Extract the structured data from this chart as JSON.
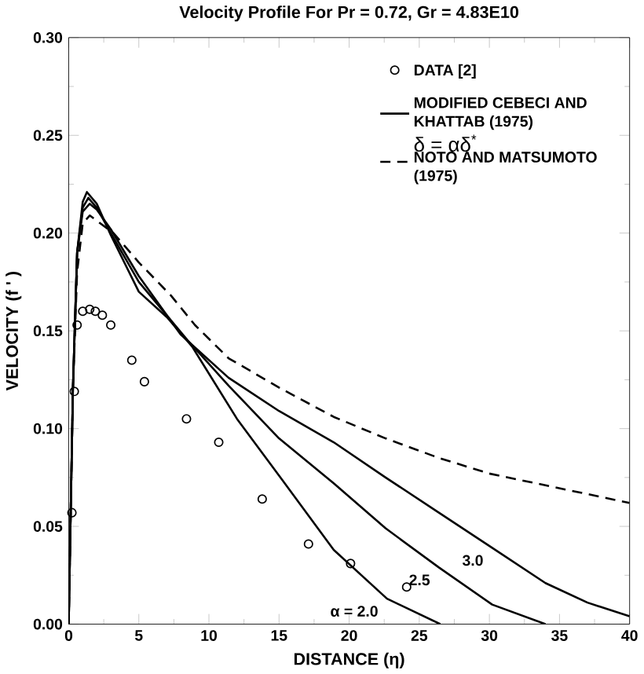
{
  "chart_data": {
    "type": "line",
    "title": "Velocity Profile For Pr = 0.72, Gr = 4.83E10",
    "xlabel": "DISTANCE (η)",
    "ylabel": "VELOCITY (f ' )",
    "xlim": [
      0,
      40
    ],
    "ylim": [
      0,
      0.3
    ],
    "xticks": [
      0,
      5,
      10,
      15,
      20,
      25,
      30,
      35,
      40
    ],
    "yticks": [
      {
        "value": 0,
        "label": "0.00"
      },
      {
        "value": 0.05,
        "label": "0.05"
      },
      {
        "value": 0.1,
        "label": "0.10"
      },
      {
        "value": 0.15,
        "label": "0.15"
      },
      {
        "value": 0.2,
        "label": "0.20"
      },
      {
        "value": 0.25,
        "label": "0.25"
      },
      {
        "value": 0.3,
        "label": "0.30"
      }
    ],
    "legend": "top right",
    "grid": false,
    "series": [
      {
        "name": "DATA [2]",
        "type": "scatter",
        "marker": "circle",
        "color": "#000000",
        "x": [
          0.23,
          0.4,
          0.6,
          1.0,
          1.5,
          1.9,
          2.4,
          3.0,
          4.5,
          5.4,
          8.4,
          10.7,
          13.8,
          17.1,
          20.1,
          24.1
        ],
        "values": [
          0.057,
          0.119,
          0.153,
          0.16,
          0.161,
          0.16,
          0.158,
          0.153,
          0.135,
          0.124,
          0.105,
          0.093,
          0.064,
          0.041,
          0.031,
          0.019
        ]
      },
      {
        "name": "MODIFIED CEBECI AND KHATTAB (1975)",
        "line_style": "solid",
        "color": "#000000",
        "x": [
          0,
          0.3,
          0.6,
          1.0,
          1.3,
          2,
          3,
          5,
          7,
          8.8,
          12,
          15.2,
          18.9,
          22.7,
          26.5
        ],
        "values": [
          0,
          0.12,
          0.19,
          0.216,
          0.221,
          0.215,
          0.199,
          0.17,
          0.157,
          0.142,
          0.105,
          0.074,
          0.038,
          0.013,
          0
        ]
      },
      {
        "line_style": "solid",
        "color": "#000000",
        "x": [
          0,
          0.3,
          0.6,
          1.0,
          1.4,
          2,
          3,
          5,
          8.5,
          11.4,
          15,
          18.9,
          22.6,
          26.4,
          30.2,
          34
        ],
        "values": [
          0,
          0.12,
          0.19,
          0.213,
          0.218,
          0.213,
          0.2,
          0.175,
          0.145,
          0.122,
          0.095,
          0.072,
          0.049,
          0.029,
          0.01,
          0
        ]
      },
      {
        "line_style": "solid",
        "color": "#000000",
        "x": [
          0,
          0.3,
          0.6,
          1.0,
          1.5,
          2,
          3,
          5,
          8,
          11.4,
          15,
          18.9,
          22.6,
          26.4,
          30.2,
          34,
          37,
          40
        ],
        "values": [
          0,
          0.12,
          0.19,
          0.211,
          0.215,
          0.212,
          0.202,
          0.178,
          0.148,
          0.126,
          0.109,
          0.093,
          0.075,
          0.057,
          0.039,
          0.021,
          0.011,
          0.004
        ]
      },
      {
        "name": "NOTO AND MATSUMOTO (1975)",
        "line_style": "dashed",
        "color": "#000000",
        "x": [
          0,
          0.3,
          0.6,
          1.0,
          1.5,
          3.2,
          5,
          7.3,
          9,
          11.4,
          15,
          18.9,
          22.6,
          26.4,
          30,
          34,
          40
        ],
        "values": [
          0,
          0.12,
          0.18,
          0.205,
          0.209,
          0.2,
          0.185,
          0.168,
          0.153,
          0.136,
          0.121,
          0.106,
          0.095,
          0.085,
          0.077,
          0.071,
          0.062
        ]
      }
    ],
    "annotations": [
      "δ = αδ$^{*}$",
      {
        "text": "3.0",
        "x": 30.2,
        "y": 0.039
      },
      {
        "text": "2.5",
        "x": 26.4,
        "y": 0.029
      },
      {
        "text": "α = 2.0",
        "x": 22.7,
        "y": 0.013
      }
    ]
  }
}
